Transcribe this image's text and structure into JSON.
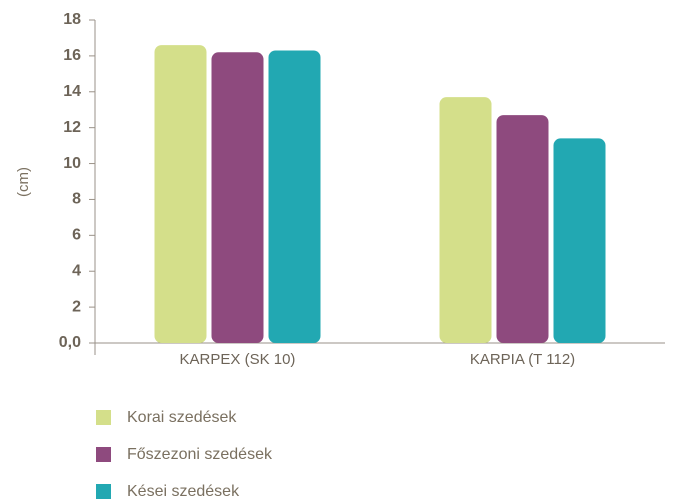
{
  "chart_data": {
    "type": "bar",
    "y_label": "(cm)",
    "categories": [
      "KARPEX (SK 10)",
      "KARPIA (T 112)"
    ],
    "series": [
      {
        "name": "Korai szedések",
        "color": "#d4df8a",
        "values": [
          16.6,
          13.7
        ]
      },
      {
        "name": "Főszezoni szedések",
        "color": "#8e4a7e",
        "values": [
          16.2,
          12.7
        ]
      },
      {
        "name": "Kései szedések",
        "color": "#22a8b2",
        "values": [
          16.3,
          11.4
        ]
      }
    ],
    "ylim": [
      0,
      18
    ],
    "yticks": [
      {
        "value": 0,
        "label": "0,0"
      },
      2,
      4,
      6,
      8,
      10,
      12,
      14,
      16,
      18
    ],
    "legend": "bottom-left"
  }
}
